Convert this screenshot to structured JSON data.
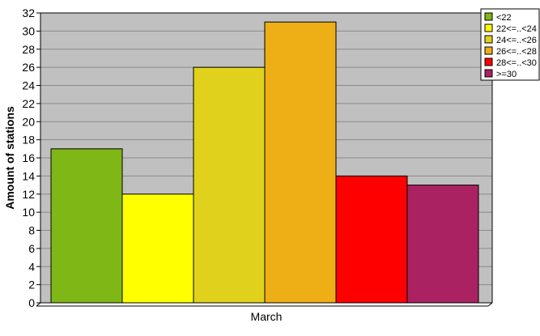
{
  "chart_data": {
    "type": "bar",
    "categories": [
      "March"
    ],
    "series": [
      {
        "name": "<22",
        "values": [
          17
        ],
        "color": "#7fb716"
      },
      {
        "name": "22<=..<24",
        "values": [
          12
        ],
        "color": "#ffff00"
      },
      {
        "name": "24<=..<26",
        "values": [
          26
        ],
        "color": "#e0d21c"
      },
      {
        "name": "26<=..<28",
        "values": [
          31
        ],
        "color": "#eeae16"
      },
      {
        "name": "28<=..<30",
        "values": [
          14
        ],
        "color": "#ff0000"
      },
      {
        "name": ">=30",
        "values": [
          13
        ],
        "color": "#aa2262"
      }
    ],
    "title": "",
    "xlabel": "",
    "ylabel": "Amount of stations",
    "ylim": [
      0,
      32
    ],
    "yticks": [
      0,
      2,
      4,
      6,
      8,
      10,
      12,
      14,
      16,
      18,
      20,
      22,
      24,
      26,
      28,
      30,
      32
    ],
    "grid": true,
    "legend_position": "top-right",
    "plot_background": "#c0c0c0"
  }
}
